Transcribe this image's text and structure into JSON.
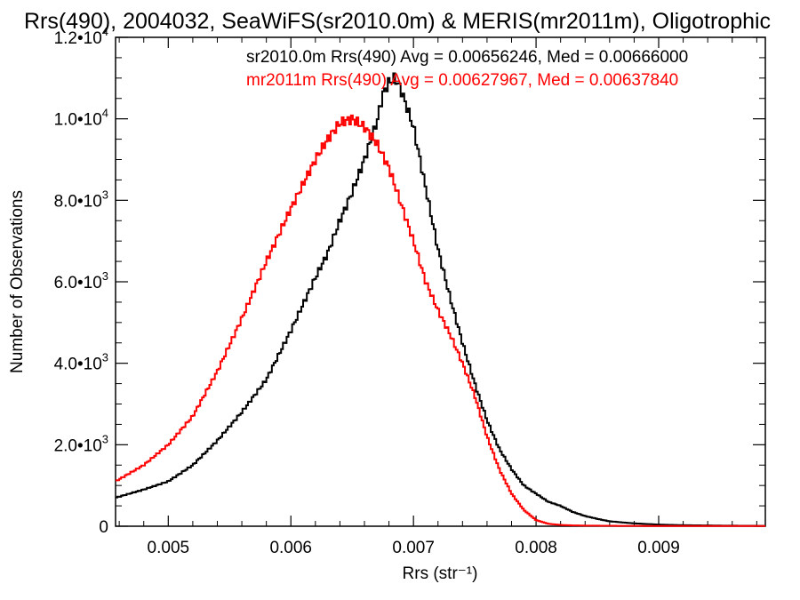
{
  "chart_data": {
    "type": "line",
    "title": "Rrs(490), 2004032, SeaWiFS(sr2010.0m) & MERIS(mr2011m), Oligotrophic",
    "xlabel": "Rrs (str⁻¹)",
    "ylabel": "Number of Observations",
    "xlim": [
      0.00457,
      0.00987
    ],
    "ylim": [
      0,
      12000
    ],
    "x_ticks": [
      0.005,
      0.006,
      0.007,
      0.008,
      0.009
    ],
    "x_tick_labels": [
      "0.005",
      "0.006",
      "0.007",
      "0.008",
      "0.009"
    ],
    "y_ticks": [
      0,
      2000,
      4000,
      6000,
      8000,
      10000,
      12000
    ],
    "y_tick_labels": [
      {
        "mantissa": "0",
        "exp": ""
      },
      {
        "mantissa": "2.0•10",
        "exp": "3"
      },
      {
        "mantissa": "4.0•10",
        "exp": "3"
      },
      {
        "mantissa": "6.0•10",
        "exp": "3"
      },
      {
        "mantissa": "8.0•10",
        "exp": "3"
      },
      {
        "mantissa": "1.0•10",
        "exp": "4"
      },
      {
        "mantissa": "1.2•10",
        "exp": "4"
      }
    ],
    "grid": false,
    "legend_position": "top-right",
    "series": [
      {
        "name": "sr2010.0m Rrs(490) Avg = 0.00656246, Med = 0.00666000",
        "color": "#000000",
        "x": [
          0.00457,
          0.0048,
          0.005,
          0.0052,
          0.0054,
          0.0056,
          0.0058,
          0.006,
          0.0062,
          0.0063,
          0.0064,
          0.0065,
          0.0066,
          0.0067,
          0.00675,
          0.0068,
          0.00685,
          0.0069,
          0.007,
          0.0071,
          0.0072,
          0.0073,
          0.0074,
          0.0075,
          0.0076,
          0.0077,
          0.0078,
          0.0079,
          0.008,
          0.0081,
          0.0082,
          0.0083,
          0.0084,
          0.0085,
          0.0086,
          0.0088,
          0.009,
          0.0092,
          0.0095,
          0.00987
        ],
        "y": [
          700,
          900,
          1100,
          1500,
          2100,
          2800,
          3600,
          4800,
          6100,
          6700,
          7500,
          8200,
          9000,
          9900,
          10600,
          10900,
          11000,
          10700,
          9800,
          8300,
          6800,
          5600,
          4500,
          3500,
          2600,
          1900,
          1400,
          1000,
          800,
          600,
          500,
          350,
          250,
          180,
          120,
          70,
          40,
          25,
          15,
          8
        ]
      },
      {
        "name": "mr2011m Rrs(490) Avg = 0.00627967, Med = 0.00637840",
        "color": "#ff0000",
        "x": [
          0.00457,
          0.0048,
          0.005,
          0.0052,
          0.0054,
          0.0056,
          0.0058,
          0.006,
          0.0061,
          0.0062,
          0.0063,
          0.0064,
          0.0065,
          0.0066,
          0.0067,
          0.0068,
          0.0069,
          0.007,
          0.0071,
          0.0072,
          0.0073,
          0.0074,
          0.0075,
          0.0076,
          0.0077,
          0.0078,
          0.0079,
          0.008,
          0.0081,
          0.0082,
          0.0083,
          0.0084,
          0.0086,
          0.0088,
          0.009,
          0.0093,
          0.0096,
          0.00987
        ],
        "y": [
          1100,
          1500,
          2000,
          2700,
          3800,
          5100,
          6500,
          7800,
          8400,
          9000,
          9500,
          9900,
          10000,
          9800,
          9400,
          8800,
          7900,
          7000,
          6000,
          5300,
          4700,
          4000,
          3200,
          2200,
          1400,
          800,
          400,
          150,
          60,
          30,
          20,
          15,
          10,
          8,
          5,
          5,
          5,
          5
        ]
      }
    ]
  }
}
